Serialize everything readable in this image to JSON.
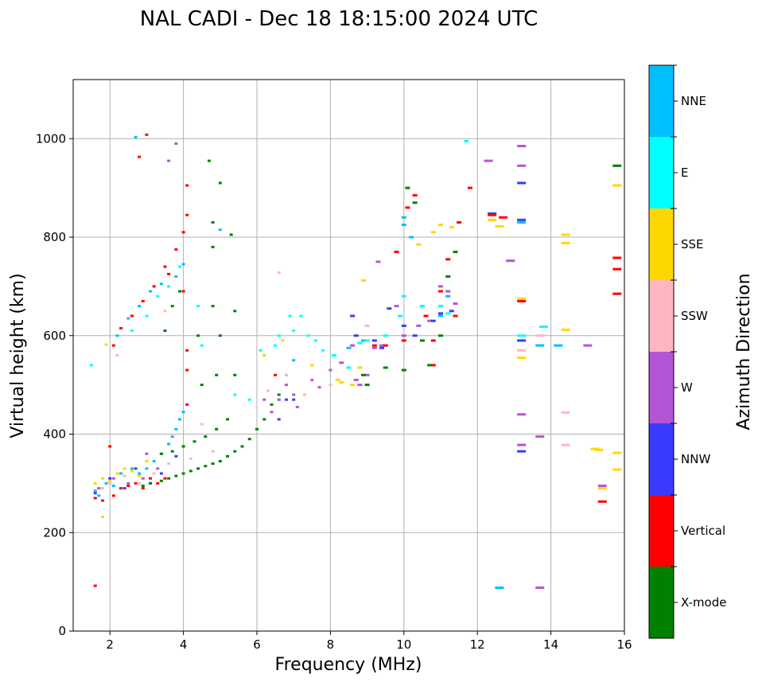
{
  "chart_data": {
    "type": "scatter",
    "title": "NAL CADI - Dec 18 18:15:00 2024 UTC",
    "xlabel": "Frequency (MHz)",
    "ylabel": "Virtual height (km)",
    "xlim": [
      1,
      16
    ],
    "ylim": [
      0,
      1120
    ],
    "xticks": [
      2,
      4,
      6,
      8,
      10,
      12,
      14,
      16
    ],
    "yticks": [
      0,
      200,
      400,
      600,
      800,
      1000
    ],
    "grid": true,
    "colorbar": {
      "label": "Azimuth Direction",
      "categories": [
        {
          "name": "X-mode",
          "color": "#008000"
        },
        {
          "name": "Vertical",
          "color": "#ff0000"
        },
        {
          "name": "NNW",
          "color": "#3a3aff"
        },
        {
          "name": "W",
          "color": "#b455d5"
        },
        {
          "name": "SSW",
          "color": "#ffb6c1"
        },
        {
          "name": "SSE",
          "color": "#ffd700"
        },
        {
          "name": "E",
          "color": "#00ffff"
        },
        {
          "name": "NNE",
          "color": "#00bfff"
        }
      ]
    },
    "series": [
      {
        "name": "NNE",
        "points": [
          [
            1.6,
            285
          ],
          [
            1.7,
            275
          ],
          [
            1.9,
            300
          ],
          [
            2.1,
            295
          ],
          [
            2.3,
            320
          ],
          [
            2.6,
            330
          ],
          [
            2.8,
            320
          ],
          [
            3.0,
            330
          ],
          [
            3.2,
            345
          ],
          [
            3.4,
            360
          ],
          [
            3.6,
            380
          ],
          [
            3.7,
            395
          ],
          [
            3.8,
            410
          ],
          [
            3.9,
            430
          ],
          [
            4.0,
            445
          ],
          [
            2.2,
            600
          ],
          [
            2.5,
            635
          ],
          [
            2.8,
            660
          ],
          [
            3.1,
            690
          ],
          [
            3.4,
            705
          ],
          [
            3.8,
            720
          ],
          [
            4.0,
            745
          ],
          [
            2.7,
            1003
          ],
          [
            5.0,
            815
          ],
          [
            6.6,
            470
          ],
          [
            6.8,
            520
          ],
          [
            7.0,
            550
          ],
          [
            8.5,
            575
          ],
          [
            8.9,
            590
          ],
          [
            10.0,
            840
          ],
          [
            10.0,
            825
          ],
          [
            10.2,
            800
          ],
          [
            10.5,
            660
          ],
          [
            11.0,
            640
          ],
          [
            11.2,
            680
          ],
          [
            12.6,
            88
          ],
          [
            13.2,
            830
          ],
          [
            13.7,
            580
          ],
          [
            14.2,
            580
          ]
        ]
      },
      {
        "name": "E",
        "points": [
          [
            1.5,
            540
          ],
          [
            2.6,
            610
          ],
          [
            3.0,
            640
          ],
          [
            3.3,
            680
          ],
          [
            3.6,
            700
          ],
          [
            3.9,
            740
          ],
          [
            4.4,
            660
          ],
          [
            4.5,
            580
          ],
          [
            5.4,
            480
          ],
          [
            5.8,
            470
          ],
          [
            6.2,
            560
          ],
          [
            6.5,
            580
          ],
          [
            6.6,
            600
          ],
          [
            6.9,
            640
          ],
          [
            7.0,
            610
          ],
          [
            7.2,
            640
          ],
          [
            7.4,
            600
          ],
          [
            7.6,
            590
          ],
          [
            7.8,
            570
          ],
          [
            8.1,
            560
          ],
          [
            8.5,
            535
          ],
          [
            8.8,
            585
          ],
          [
            9.0,
            590
          ],
          [
            9.5,
            600
          ],
          [
            9.9,
            640
          ],
          [
            10.0,
            680
          ],
          [
            10.5,
            660
          ],
          [
            11.0,
            660
          ],
          [
            11.2,
            645
          ],
          [
            11.7,
            995
          ],
          [
            13.2,
            600
          ],
          [
            13.8,
            618
          ],
          [
            6.1,
            570
          ]
        ]
      },
      {
        "name": "SSE",
        "points": [
          [
            1.6,
            300
          ],
          [
            1.8,
            310
          ],
          [
            2.0,
            305
          ],
          [
            2.2,
            320
          ],
          [
            2.4,
            330
          ],
          [
            2.6,
            325
          ],
          [
            2.8,
            315
          ],
          [
            3.0,
            345
          ],
          [
            1.8,
            232
          ],
          [
            1.9,
            582
          ],
          [
            6.2,
            560
          ],
          [
            6.7,
            590
          ],
          [
            7.5,
            540
          ],
          [
            8.2,
            510
          ],
          [
            8.3,
            505
          ],
          [
            8.6,
            500
          ],
          [
            8.8,
            535
          ],
          [
            8.9,
            712
          ],
          [
            10.4,
            785
          ],
          [
            10.8,
            810
          ],
          [
            11.0,
            825
          ],
          [
            11.3,
            820
          ],
          [
            12.4,
            835
          ],
          [
            12.6,
            822
          ],
          [
            13.2,
            555
          ],
          [
            13.2,
            675
          ],
          [
            14.4,
            805
          ],
          [
            14.4,
            788
          ],
          [
            14.4,
            612
          ],
          [
            15.2,
            370
          ],
          [
            15.3,
            368
          ],
          [
            15.4,
            290
          ],
          [
            15.8,
            362
          ],
          [
            15.8,
            328
          ],
          [
            15.8,
            905
          ]
        ]
      },
      {
        "name": "SSW",
        "points": [
          [
            1.8,
            290
          ],
          [
            2.0,
            300
          ],
          [
            2.4,
            315
          ],
          [
            2.8,
            300
          ],
          [
            3.2,
            320
          ],
          [
            3.6,
            340
          ],
          [
            4.2,
            350
          ],
          [
            4.8,
            365
          ],
          [
            6.3,
            488
          ],
          [
            6.6,
            728
          ],
          [
            6.8,
            520
          ],
          [
            7.3,
            480
          ],
          [
            8.0,
            500
          ],
          [
            9.0,
            620
          ],
          [
            9.4,
            580
          ],
          [
            13.2,
            570
          ],
          [
            13.7,
            600
          ],
          [
            14.4,
            378
          ],
          [
            14.4,
            444
          ],
          [
            2.2,
            560
          ],
          [
            3.5,
            650
          ],
          [
            4.5,
            420
          ]
        ]
      },
      {
        "name": "W",
        "points": [
          [
            1.7,
            290
          ],
          [
            2.1,
            310
          ],
          [
            2.5,
            300
          ],
          [
            2.9,
            310
          ],
          [
            3.3,
            330
          ],
          [
            3.0,
            360
          ],
          [
            6.2,
            470
          ],
          [
            6.4,
            445
          ],
          [
            6.6,
            470
          ],
          [
            6.8,
            500
          ],
          [
            7.0,
            480
          ],
          [
            7.1,
            455
          ],
          [
            7.5,
            510
          ],
          [
            7.7,
            495
          ],
          [
            8.0,
            530
          ],
          [
            8.3,
            545
          ],
          [
            8.6,
            580
          ],
          [
            8.7,
            510
          ],
          [
            8.8,
            500
          ],
          [
            9.0,
            520
          ],
          [
            9.2,
            575
          ],
          [
            9.4,
            580
          ],
          [
            9.3,
            750
          ],
          [
            9.8,
            660
          ],
          [
            10.0,
            600
          ],
          [
            10.4,
            620
          ],
          [
            10.7,
            630
          ],
          [
            11.0,
            700
          ],
          [
            11.2,
            690
          ],
          [
            11.4,
            665
          ],
          [
            12.3,
            955
          ],
          [
            12.9,
            752
          ],
          [
            13.2,
            985
          ],
          [
            13.2,
            945
          ],
          [
            13.2,
            440
          ],
          [
            13.2,
            378
          ],
          [
            13.7,
            395
          ],
          [
            13.7,
            88
          ],
          [
            15.0,
            580
          ],
          [
            15.4,
            295
          ],
          [
            3.6,
            955
          ],
          [
            3.8,
            990
          ]
        ]
      },
      {
        "name": "NNW",
        "points": [
          [
            1.6,
            280
          ],
          [
            2.0,
            310
          ],
          [
            2.4,
            290
          ],
          [
            2.7,
            330
          ],
          [
            3.1,
            300
          ],
          [
            3.4,
            320
          ],
          [
            3.8,
            355
          ],
          [
            6.6,
            430
          ],
          [
            6.8,
            470
          ],
          [
            7.0,
            470
          ],
          [
            8.6,
            640
          ],
          [
            8.7,
            600
          ],
          [
            9.2,
            590
          ],
          [
            9.4,
            575
          ],
          [
            9.6,
            655
          ],
          [
            10.0,
            620
          ],
          [
            10.3,
            600
          ],
          [
            10.8,
            630
          ],
          [
            11.0,
            645
          ],
          [
            11.3,
            650
          ],
          [
            13.2,
            910
          ],
          [
            13.2,
            835
          ],
          [
            13.2,
            590
          ],
          [
            13.2,
            365
          ],
          [
            12.4,
            848
          ]
        ]
      },
      {
        "name": "Vertical",
        "points": [
          [
            1.6,
            92
          ],
          [
            1.6,
            270
          ],
          [
            1.8,
            265
          ],
          [
            2.0,
            375
          ],
          [
            2.1,
            275
          ],
          [
            2.3,
            290
          ],
          [
            2.5,
            295
          ],
          [
            2.7,
            300
          ],
          [
            2.9,
            290
          ],
          [
            3.1,
            310
          ],
          [
            3.3,
            300
          ],
          [
            3.5,
            310
          ],
          [
            3.0,
            1008
          ],
          [
            2.8,
            963
          ],
          [
            2.1,
            580
          ],
          [
            2.3,
            615
          ],
          [
            2.6,
            640
          ],
          [
            2.9,
            670
          ],
          [
            3.2,
            700
          ],
          [
            3.5,
            740
          ],
          [
            3.8,
            775
          ],
          [
            4.0,
            810
          ],
          [
            4.1,
            845
          ],
          [
            4.1,
            905
          ],
          [
            4.1,
            570
          ],
          [
            4.1,
            530
          ],
          [
            4.1,
            460
          ],
          [
            4.0,
            690
          ],
          [
            3.6,
            725
          ],
          [
            6.5,
            520
          ],
          [
            9.2,
            580
          ],
          [
            9.5,
            580
          ],
          [
            9.8,
            770
          ],
          [
            10.0,
            590
          ],
          [
            10.1,
            860
          ],
          [
            10.3,
            885
          ],
          [
            10.6,
            640
          ],
          [
            10.8,
            590
          ],
          [
            10.8,
            540
          ],
          [
            11.0,
            690
          ],
          [
            11.2,
            755
          ],
          [
            11.4,
            640
          ],
          [
            11.5,
            830
          ],
          [
            11.8,
            900
          ],
          [
            12.4,
            845
          ],
          [
            12.7,
            840
          ],
          [
            13.2,
            670
          ],
          [
            15.4,
            263
          ],
          [
            15.8,
            758
          ],
          [
            15.8,
            735
          ],
          [
            15.8,
            685
          ]
        ]
      },
      {
        "name": "X-mode",
        "points": [
          [
            2.9,
            295
          ],
          [
            3.1,
            300
          ],
          [
            3.4,
            305
          ],
          [
            3.6,
            310
          ],
          [
            3.8,
            315
          ],
          [
            4.0,
            320
          ],
          [
            4.2,
            325
          ],
          [
            4.4,
            330
          ],
          [
            4.6,
            335
          ],
          [
            4.8,
            340
          ],
          [
            5.0,
            345
          ],
          [
            5.2,
            355
          ],
          [
            5.4,
            365
          ],
          [
            5.6,
            375
          ],
          [
            5.8,
            390
          ],
          [
            6.0,
            410
          ],
          [
            6.2,
            430
          ],
          [
            6.4,
            460
          ],
          [
            6.6,
            480
          ],
          [
            3.4,
            360
          ],
          [
            3.7,
            365
          ],
          [
            4.0,
            375
          ],
          [
            4.3,
            385
          ],
          [
            4.6,
            395
          ],
          [
            4.9,
            410
          ],
          [
            5.2,
            430
          ],
          [
            5.4,
            520
          ],
          [
            4.9,
            520
          ],
          [
            5.0,
            600
          ],
          [
            4.5,
            500
          ],
          [
            4.8,
            660
          ],
          [
            4.8,
            780
          ],
          [
            4.8,
            830
          ],
          [
            5.3,
            805
          ],
          [
            5.4,
            650
          ],
          [
            4.7,
            955
          ],
          [
            5.0,
            910
          ],
          [
            3.5,
            610
          ],
          [
            3.7,
            660
          ],
          [
            3.9,
            690
          ],
          [
            4.4,
            600
          ],
          [
            8.9,
            520
          ],
          [
            9.0,
            500
          ],
          [
            9.5,
            535
          ],
          [
            10.0,
            530
          ],
          [
            10.1,
            900
          ],
          [
            10.3,
            870
          ],
          [
            10.5,
            590
          ],
          [
            10.7,
            540
          ],
          [
            11.0,
            600
          ],
          [
            11.2,
            720
          ],
          [
            11.4,
            770
          ],
          [
            15.8,
            945
          ]
        ]
      }
    ]
  }
}
